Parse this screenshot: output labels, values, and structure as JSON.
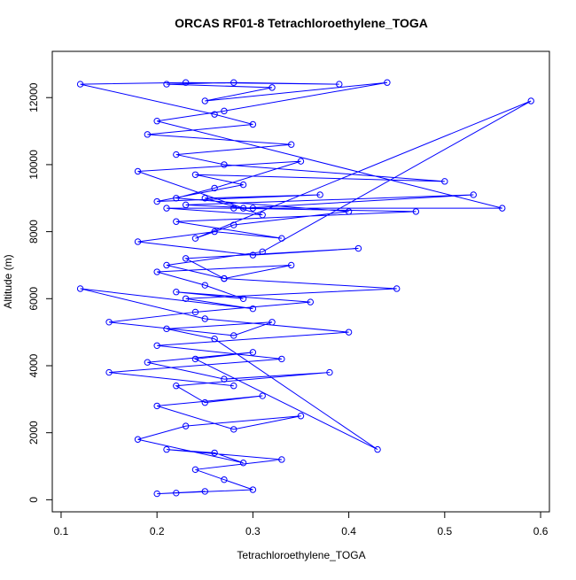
{
  "chart_data": {
    "type": "line",
    "title": "ORCAS RF01-8 Tetrachloroethylene_TOGA",
    "xlabel": "Tetrachloroethylene_TOGA",
    "ylabel": "Altitude (m)",
    "color": "#0000ff",
    "xlim": [
      0.0908,
      0.6092
    ],
    "ylim": [
      -360,
      13380
    ],
    "xticks": [
      0.1,
      0.2,
      0.3,
      0.4,
      0.5,
      0.6
    ],
    "yticks": [
      0,
      2000,
      4000,
      6000,
      8000,
      10000,
      12000
    ],
    "x": [
      0.22,
      0.25,
      0.2,
      0.3,
      0.27,
      0.24,
      0.33,
      0.21,
      0.26,
      0.29,
      0.18,
      0.23,
      0.35,
      0.28,
      0.2,
      0.31,
      0.25,
      0.22,
      0.38,
      0.27,
      0.19,
      0.3,
      0.24,
      0.43,
      0.26,
      0.21,
      0.32,
      0.28,
      0.15,
      0.24,
      0.36,
      0.22,
      0.29,
      0.25,
      0.2,
      0.34,
      0.27,
      0.23,
      0.41,
      0.3,
      0.18,
      0.26,
      0.33,
      0.22,
      0.47,
      0.28,
      0.21,
      0.31,
      0.25,
      0.37,
      0.2,
      0.29,
      0.24,
      0.5,
      0.27,
      0.22,
      0.34,
      0.19,
      0.3,
      0.26,
      0.12,
      0.23,
      0.39,
      0.28,
      0.21,
      0.32,
      0.25,
      0.44,
      0.27,
      0.2,
      0.56,
      0.3,
      0.23,
      0.53,
      0.29,
      0.18,
      0.35,
      0.26,
      0.22,
      0.4,
      0.28,
      0.24,
      0.59,
      0.31,
      0.21,
      0.27,
      0.45,
      0.23,
      0.3,
      0.12,
      0.25,
      0.4,
      0.2,
      0.33,
      0.15,
      0.28
    ],
    "values": [
      200,
      250,
      180,
      300,
      600,
      900,
      1200,
      1500,
      1400,
      1100,
      1800,
      2200,
      2500,
      2100,
      2800,
      3100,
      2900,
      3400,
      3800,
      3600,
      4100,
      4400,
      4200,
      1500,
      4800,
      5100,
      5300,
      4900,
      5300,
      5600,
      5900,
      6200,
      6000,
      6400,
      6800,
      7000,
      6600,
      7200,
      7500,
      7300,
      7700,
      8000,
      7800,
      8300,
      8600,
      8700,
      8700,
      8500,
      9000,
      9100,
      8900,
      9400,
      9700,
      9500,
      10000,
      10300,
      10600,
      10900,
      11200,
      11500,
      12400,
      12450,
      12400,
      12450,
      12400,
      12300,
      11900,
      12450,
      11600,
      11300,
      8700,
      8700,
      8800,
      9100,
      8700,
      9800,
      10100,
      9300,
      9000,
      8600,
      8200,
      7800,
      11900,
      7400,
      7000,
      6600,
      6300,
      6000,
      5700,
      6300,
      5400,
      5000,
      4600,
      4200,
      3800,
      3400
    ]
  }
}
